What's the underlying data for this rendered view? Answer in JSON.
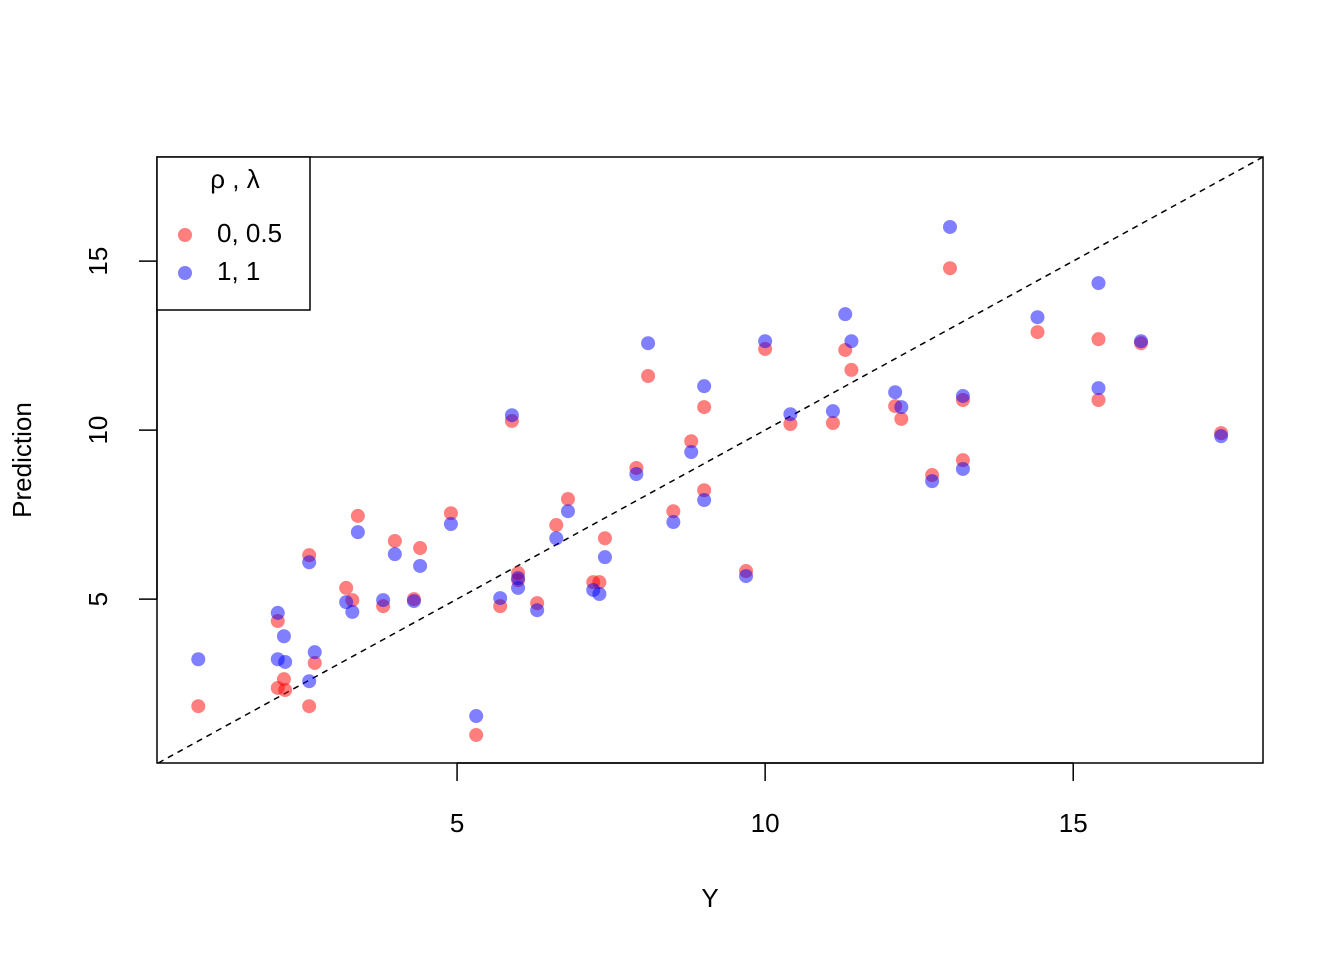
{
  "chart_data": {
    "type": "scatter",
    "x_label": "Y",
    "y_label": "Prediction",
    "legend_title": "ρ ,  λ",
    "legend_position": "top-left",
    "x": [
      0.8,
      2.09,
      2.09,
      2.19,
      2.21,
      2.6,
      2.6,
      2.69,
      3.2,
      3.3,
      3.39,
      3.8,
      3.99,
      4.3,
      4.4,
      4.9,
      5.31,
      5.7,
      5.89,
      5.99,
      5.99,
      6.3,
      6.61,
      6.8,
      7.21,
      7.31,
      7.4,
      7.91,
      8.1,
      8.51,
      8.8,
      9.01,
      9.01,
      9.69,
      10.0,
      10.41,
      11.1,
      11.3,
      11.4,
      12.11,
      12.21,
      12.71,
      13.0,
      13.21,
      13.21,
      14.42,
      15.41,
      15.41,
      16.1,
      17.4
    ],
    "series": [
      {
        "name": "0, 0.5",
        "color": "#FF000080",
        "values": [
          1.83,
          2.37,
          4.35,
          2.63,
          2.31,
          6.3,
          1.83,
          3.11,
          5.33,
          4.97,
          7.46,
          4.79,
          6.72,
          5.0,
          6.51,
          7.54,
          0.98,
          4.79,
          10.27,
          5.77,
          5.56,
          4.88,
          7.19,
          7.96,
          5.5,
          5.5,
          6.8,
          8.88,
          11.6,
          7.6,
          9.67,
          10.68,
          8.22,
          5.83,
          12.4,
          10.18,
          10.21,
          12.37,
          11.78,
          10.71,
          10.33,
          8.67,
          14.79,
          10.89,
          9.11,
          12.9,
          12.69,
          10.89,
          12.57,
          9.91
        ]
      },
      {
        "name": "1, 1",
        "color": "#0000FF80",
        "values": [
          3.22,
          3.22,
          4.59,
          3.9,
          3.14,
          6.09,
          2.57,
          3.43,
          4.91,
          4.62,
          6.98,
          4.97,
          6.33,
          4.94,
          5.98,
          7.22,
          1.54,
          5.03,
          10.44,
          5.62,
          5.33,
          4.67,
          6.8,
          7.6,
          5.27,
          5.15,
          6.24,
          8.7,
          12.57,
          7.28,
          9.35,
          11.3,
          7.93,
          5.68,
          12.63,
          10.47,
          10.56,
          13.43,
          12.63,
          11.12,
          10.68,
          8.49,
          16.01,
          11.01,
          8.85,
          13.34,
          14.35,
          11.24,
          12.63,
          9.82
        ]
      }
    ],
    "xlim": [
      0.13,
      18.08
    ],
    "ylim": [
      0.15,
      18.08
    ],
    "xticks": [
      5,
      10,
      15
    ],
    "yticks": [
      5,
      10,
      15
    ],
    "reference_line": "y = x"
  }
}
